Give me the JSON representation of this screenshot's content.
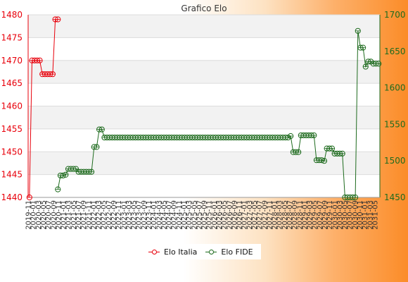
{
  "chart_data": {
    "type": "line",
    "title": "Grafico Elo",
    "dual_axis": true,
    "y_left": {
      "ylim": [
        1440,
        1480
      ],
      "ticks": [
        1440,
        1445,
        1450,
        1455,
        1460,
        1465,
        1470,
        1475,
        1480
      ],
      "color": "#e8000b"
    },
    "y_right": {
      "ylim": [
        1450,
        1700
      ],
      "ticks": [
        1450,
        1500,
        1550,
        1600,
        1650,
        1700
      ],
      "color": "#1e6b1e"
    },
    "n_points": 136,
    "series": [
      {
        "name": "Elo Italia",
        "axis": "left",
        "color": "#e8000b",
        "points": [
          [
            0,
            1440
          ],
          [
            1,
            1470
          ],
          [
            2,
            1470
          ],
          [
            3,
            1470
          ],
          [
            4,
            1470
          ],
          [
            5,
            1467
          ],
          [
            6,
            1467
          ],
          [
            7,
            1467
          ],
          [
            8,
            1467
          ],
          [
            9,
            1467
          ],
          [
            10,
            1479
          ],
          [
            11,
            1479
          ]
        ]
      },
      {
        "name": "Elo FIDE",
        "axis": "right",
        "color": "#1e6b1e",
        "points": [
          [
            11,
            1461
          ],
          [
            12,
            1480
          ],
          [
            13,
            1480
          ],
          [
            14,
            1481
          ],
          [
            15,
            1489
          ],
          [
            16,
            1489
          ],
          [
            17,
            1489
          ],
          [
            18,
            1489
          ],
          [
            19,
            1485
          ],
          [
            20,
            1485
          ],
          [
            21,
            1485
          ],
          [
            22,
            1485
          ],
          [
            23,
            1485
          ],
          [
            24,
            1485
          ],
          [
            25,
            1519
          ],
          [
            26,
            1519
          ],
          [
            27,
            1543
          ],
          [
            28,
            1543
          ],
          [
            29,
            1532
          ],
          [
            30,
            1532
          ],
          [
            31,
            1532
          ],
          [
            32,
            1532
          ],
          [
            33,
            1532
          ],
          [
            34,
            1532
          ],
          [
            35,
            1532
          ],
          [
            36,
            1532
          ],
          [
            37,
            1532
          ],
          [
            38,
            1532
          ],
          [
            39,
            1532
          ],
          [
            40,
            1532
          ],
          [
            41,
            1532
          ],
          [
            42,
            1532
          ],
          [
            43,
            1532
          ],
          [
            44,
            1532
          ],
          [
            45,
            1532
          ],
          [
            46,
            1532
          ],
          [
            47,
            1532
          ],
          [
            48,
            1532
          ],
          [
            49,
            1532
          ],
          [
            50,
            1532
          ],
          [
            51,
            1532
          ],
          [
            52,
            1532
          ],
          [
            53,
            1532
          ],
          [
            54,
            1532
          ],
          [
            55,
            1532
          ],
          [
            56,
            1532
          ],
          [
            57,
            1532
          ],
          [
            58,
            1532
          ],
          [
            59,
            1532
          ],
          [
            60,
            1532
          ],
          [
            61,
            1532
          ],
          [
            62,
            1532
          ],
          [
            63,
            1532
          ],
          [
            64,
            1532
          ],
          [
            65,
            1532
          ],
          [
            66,
            1532
          ],
          [
            67,
            1532
          ],
          [
            68,
            1532
          ],
          [
            69,
            1532
          ],
          [
            70,
            1532
          ],
          [
            71,
            1532
          ],
          [
            72,
            1532
          ],
          [
            73,
            1532
          ],
          [
            74,
            1532
          ],
          [
            75,
            1532
          ],
          [
            76,
            1532
          ],
          [
            77,
            1532
          ],
          [
            78,
            1532
          ],
          [
            79,
            1532
          ],
          [
            80,
            1532
          ],
          [
            81,
            1532
          ],
          [
            82,
            1532
          ],
          [
            83,
            1532
          ],
          [
            84,
            1532
          ],
          [
            85,
            1532
          ],
          [
            86,
            1532
          ],
          [
            87,
            1532
          ],
          [
            88,
            1532
          ],
          [
            89,
            1532
          ],
          [
            90,
            1532
          ],
          [
            91,
            1532
          ],
          [
            92,
            1532
          ],
          [
            93,
            1532
          ],
          [
            94,
            1532
          ],
          [
            95,
            1532
          ],
          [
            96,
            1532
          ],
          [
            97,
            1532
          ],
          [
            98,
            1532
          ],
          [
            99,
            1532
          ],
          [
            100,
            1532
          ],
          [
            101,
            1534
          ],
          [
            102,
            1512
          ],
          [
            103,
            1512
          ],
          [
            104,
            1512
          ],
          [
            105,
            1535
          ],
          [
            106,
            1535
          ],
          [
            107,
            1535
          ],
          [
            108,
            1535
          ],
          [
            109,
            1535
          ],
          [
            110,
            1535
          ],
          [
            111,
            1501
          ],
          [
            112,
            1501
          ],
          [
            113,
            1501
          ],
          [
            114,
            1500
          ],
          [
            115,
            1517
          ],
          [
            116,
            1517
          ],
          [
            117,
            1517
          ],
          [
            118,
            1510
          ],
          [
            119,
            1510
          ],
          [
            120,
            1510
          ],
          [
            121,
            1510
          ],
          [
            122,
            1450
          ],
          [
            123,
            1450
          ],
          [
            124,
            1450
          ],
          [
            125,
            1450
          ],
          [
            126,
            1450
          ],
          [
            127,
            1678
          ],
          [
            128,
            1655
          ],
          [
            129,
            1655
          ],
          [
            130,
            1629
          ],
          [
            131,
            1636
          ],
          [
            132,
            1636
          ],
          [
            133,
            1633
          ],
          [
            134,
            1633
          ],
          [
            135,
            1633
          ]
        ]
      }
    ],
    "x_tick_labels": [
      "2019-11",
      "2020-01",
      "2020-03",
      "2020-05",
      "2020-07",
      "2020-09",
      "2020-11",
      "2021-01",
      "2021-03",
      "2021-05",
      "2021-07",
      "2021-09",
      "2021-11",
      "2022-01",
      "2022-03",
      "2022-05",
      "2022-07",
      "2022-09",
      "2022-11",
      "2023-01",
      "2023-03",
      "2023-05",
      "2023-07",
      "2023-09",
      "2023-11",
      "2024-01",
      "2024-03",
      "2024-05",
      "2024-07",
      "2024-09",
      "2024-11",
      "2025-01",
      "2025-03",
      "2025-05",
      "2025-07",
      "2025-09",
      "2025-11",
      "2026-01",
      "2026-03",
      "2026-05",
      "2026-07",
      "2026-09",
      "2026-11",
      "2027-01",
      "2027-03",
      "2027-05",
      "2027-07",
      "2027-09",
      "2027-11",
      "2028-01",
      "2028-03",
      "2028-05",
      "2028-07",
      "2028-09",
      "2028-11",
      "2029-01",
      "2029-03",
      "2029-05",
      "2029-07",
      "2029-09",
      "2029-11",
      "2030-01",
      "2030-03",
      "2030-05",
      "2030-07",
      "2030-09",
      "2030-11",
      "2031-01",
      "2031-03",
      "2031-05"
    ],
    "grid": true,
    "legend": "bottom-center"
  }
}
